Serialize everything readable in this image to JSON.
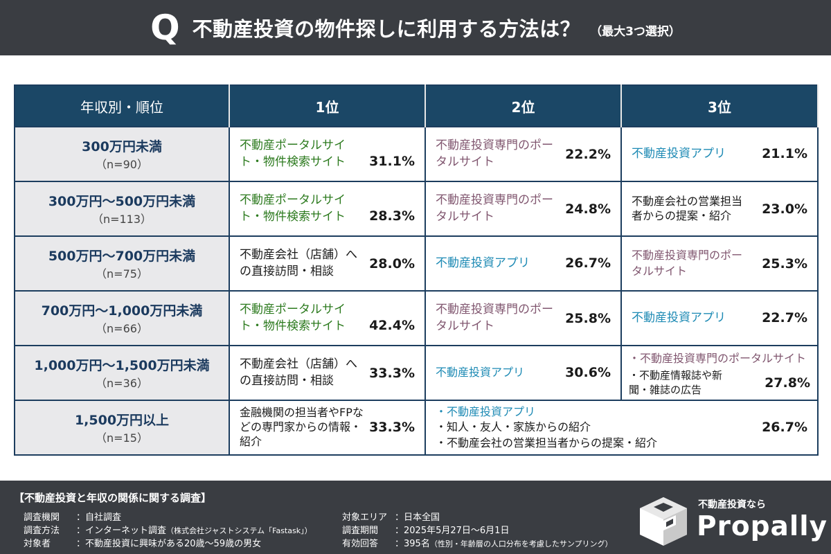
{
  "header": {
    "q_mark": "Q",
    "question": "不動産投資の物件探しに利用する方法は？",
    "note": "（最大3つ選択）"
  },
  "table": {
    "headers": [
      "年収別・順位",
      "1位",
      "2位",
      "3位"
    ],
    "rows": [
      {
        "category": "300万円未満",
        "n": "（n=90）",
        "r1_text": "不動産ポータルサイト・物件検索サイト",
        "r1_pct": "31.1%",
        "r2_text": "不動産投資専門のポータルサイト",
        "r2_pct": "22.2%",
        "r3_text": "不動産投資アプリ",
        "r3_pct": "21.1%"
      },
      {
        "category": "300万円～500万円未満",
        "n": "（n=113）",
        "r1_text": "不動産ポータルサイト・物件検索サイト",
        "r1_pct": "28.3%",
        "r2_text": "不動産投資専門のポータルサイト",
        "r2_pct": "24.8%",
        "r3_text": "不動産会社の営業担当者からの提案・紹介",
        "r3_pct": "23.0%"
      },
      {
        "category": "500万円～700万円未満",
        "n": "（n=75）",
        "r1_text": "不動産会社（店舗）への直接訪問・相談",
        "r1_pct": "28.0%",
        "r2_text": "不動産投資アプリ",
        "r2_pct": "26.7%",
        "r3_text": "不動産投資専門のポータルサイト",
        "r3_pct": "25.3%"
      },
      {
        "category": "700万円～1,000万円未満",
        "n": "（n=66）",
        "r1_text": "不動産ポータルサイト・物件検索サイト",
        "r1_pct": "42.4%",
        "r2_text": "不動産投資専門のポータルサイト",
        "r2_pct": "25.8%",
        "r3_text": "不動産投資アプリ",
        "r3_pct": "22.7%"
      },
      {
        "category": "1,000万円～1,500万円未満",
        "n": "（n=36）",
        "r1_text": "不動産会社（店舗）への直接訪問・相談",
        "r1_pct": "33.3%",
        "r2_text": "不動産投資アプリ",
        "r2_pct": "30.6%",
        "r3_item1": "・不動産投資専門のポータルサイト",
        "r3_item2": "・不動産情報誌や新聞・雑誌の広告",
        "r3_pct": "27.8%"
      },
      {
        "category": "1,500万円以上",
        "n": "（n=15）",
        "r1_text": "金融機関の担当者やFPなどの専門家からの情報・紹介",
        "r1_pct": "33.3%",
        "r23_items": [
          "・不動産投資アプリ",
          "・知人・友人・家族からの紹介",
          "・不動産会社の営業担当者からの提案・紹介"
        ],
        "r23_pct": "26.7%"
      }
    ]
  },
  "footer": {
    "title": "【不動産投資と年収の関係に関する調査】",
    "left": [
      {
        "label": "調査機関",
        "value": "：自社調査",
        "note": ""
      },
      {
        "label": "調査方法",
        "value": "：インターネット調査",
        "note": "（株式会社ジャストシステム「Fastask」）"
      },
      {
        "label": "対象者",
        "value": "：不動産投資に興味がある20歳～59歳の男女",
        "note": ""
      }
    ],
    "right": [
      {
        "label": "対象エリア",
        "value": "：日本全国",
        "note": ""
      },
      {
        "label": "調査期間",
        "value": "：2025年5月27日～6月1日",
        "note": ""
      },
      {
        "label": "有効回答",
        "value": "：395名",
        "note": "（性別・年齢層の人口分布を考慮したサンプリング）"
      }
    ],
    "brand_sub": "不動産投資なら",
    "brand_name": "Propally"
  },
  "colors": {
    "header_bg": "#3a3d42",
    "table_header_bg": "#1b4766",
    "green": "#2c7a1e",
    "purple": "#80566f",
    "teal": "#1d8ab4"
  }
}
